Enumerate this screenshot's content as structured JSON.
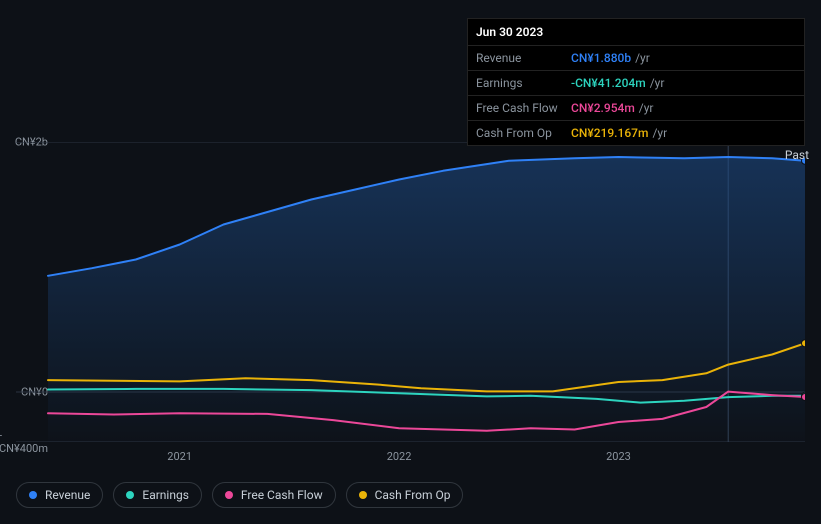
{
  "tooltip": {
    "date": "Jun 30 2023",
    "rows": [
      {
        "label": "Revenue",
        "value": "CN¥1.880b",
        "unit": "/yr",
        "color": "#2f81f7"
      },
      {
        "label": "Earnings",
        "value": "-CN¥41.204m",
        "unit": "/yr",
        "color": "#2dd4bf"
      },
      {
        "label": "Free Cash Flow",
        "value": "CN¥2.954m",
        "unit": "/yr",
        "color": "#ec4899"
      },
      {
        "label": "Cash From Op",
        "value": "CN¥219.167m",
        "unit": "/yr",
        "color": "#eab308"
      }
    ]
  },
  "chart": {
    "type": "line",
    "background_color": "#0d1117",
    "plot_background": "#0d1117",
    "grid_color": "#1a2230",
    "text_color": "#8b949e",
    "past_label": "Past",
    "xlim": [
      2020.4,
      2023.85
    ],
    "ylim": [
      -400,
      2000
    ],
    "x_ticks": [
      2021,
      2022,
      2023
    ],
    "x_tick_labels": [
      "2021",
      "2022",
      "2023"
    ],
    "y_ticks": [
      -400,
      0,
      2000
    ],
    "y_tick_labels": [
      "-CN¥400m",
      "CN¥0",
      "CN¥2b"
    ],
    "guideline_x": 2023.5,
    "guideline_color": "#334155",
    "axis_fontsize": 11,
    "line_width": 2,
    "series": [
      {
        "name": "Revenue",
        "color": "#2f81f7",
        "fill": true,
        "fill_top": "#1e3a5f55",
        "fill_bottom": "#1e3a5f05",
        "x": [
          2020.4,
          2020.6,
          2020.8,
          2021.0,
          2021.2,
          2021.4,
          2021.6,
          2021.8,
          2022.0,
          2022.2,
          2022.5,
          2022.8,
          2023.0,
          2023.3,
          2023.5,
          2023.7,
          2023.85
        ],
        "y": [
          930,
          990,
          1060,
          1180,
          1340,
          1440,
          1540,
          1620,
          1700,
          1770,
          1850,
          1870,
          1880,
          1870,
          1880,
          1870,
          1850
        ]
      },
      {
        "name": "Cash From Op",
        "color": "#eab308",
        "fill": false,
        "x": [
          2020.4,
          2020.7,
          2021.0,
          2021.3,
          2021.6,
          2021.9,
          2022.1,
          2022.4,
          2022.7,
          2023.0,
          2023.2,
          2023.4,
          2023.5,
          2023.7,
          2023.85
        ],
        "y": [
          95,
          90,
          85,
          110,
          95,
          60,
          30,
          5,
          5,
          80,
          95,
          150,
          219,
          300,
          390
        ]
      },
      {
        "name": "Earnings",
        "color": "#2dd4bf",
        "fill": false,
        "x": [
          2020.4,
          2020.8,
          2021.2,
          2021.6,
          2022.0,
          2022.4,
          2022.6,
          2022.9,
          2023.1,
          2023.3,
          2023.5,
          2023.7,
          2023.85
        ],
        "y": [
          20,
          25,
          25,
          15,
          -10,
          -35,
          -30,
          -55,
          -85,
          -70,
          -41,
          -30,
          -30
        ]
      },
      {
        "name": "Free Cash Flow",
        "color": "#ec4899",
        "fill": false,
        "x": [
          2020.4,
          2020.7,
          2021.0,
          2021.4,
          2021.7,
          2022.0,
          2022.2,
          2022.4,
          2022.6,
          2022.8,
          2023.0,
          2023.2,
          2023.4,
          2023.5,
          2023.7,
          2023.85
        ],
        "y": [
          -170,
          -180,
          -170,
          -175,
          -225,
          -290,
          -300,
          -310,
          -290,
          -300,
          -240,
          -215,
          -120,
          3,
          -25,
          -40
        ]
      }
    ]
  },
  "legend": {
    "items": [
      {
        "label": "Revenue",
        "color": "#2f81f7"
      },
      {
        "label": "Earnings",
        "color": "#2dd4bf"
      },
      {
        "label": "Free Cash Flow",
        "color": "#ec4899"
      },
      {
        "label": "Cash From Op",
        "color": "#eab308"
      }
    ]
  }
}
